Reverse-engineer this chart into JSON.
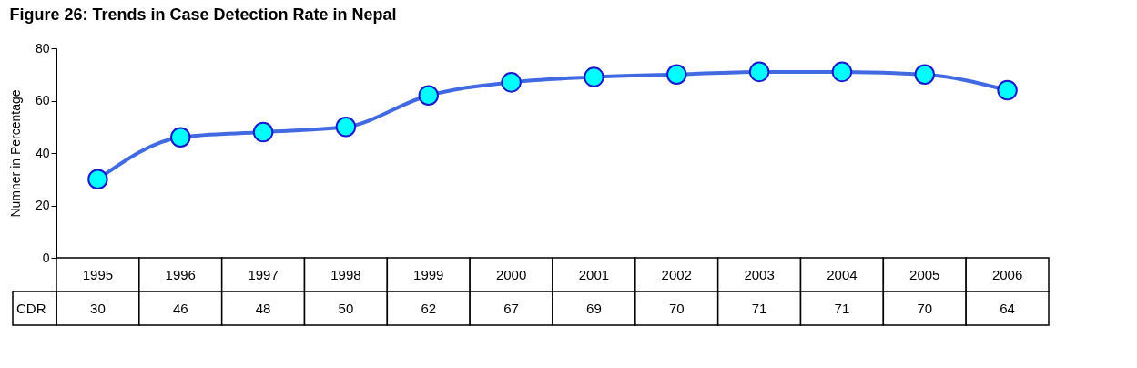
{
  "chart_data": {
    "type": "line",
    "title": "Figure 26: Trends in Case Detection Rate in Nepal",
    "ylabel": "Numner in Percentage",
    "categories": [
      "1995",
      "1996",
      "1997",
      "1998",
      "1999",
      "2000",
      "2001",
      "2002",
      "2003",
      "2004",
      "2005",
      "2006"
    ],
    "series": [
      {
        "name": "CDR",
        "color": "#4169e1",
        "values": [
          30,
          46,
          48,
          50,
          62,
          67,
          69,
          70,
          71,
          71,
          70,
          64
        ]
      }
    ],
    "ylim": [
      0,
      80
    ],
    "yticks": [
      0,
      20,
      40,
      60,
      80
    ],
    "grid": false,
    "marker": "circle",
    "line_style": "solid",
    "data_labels": true
  }
}
